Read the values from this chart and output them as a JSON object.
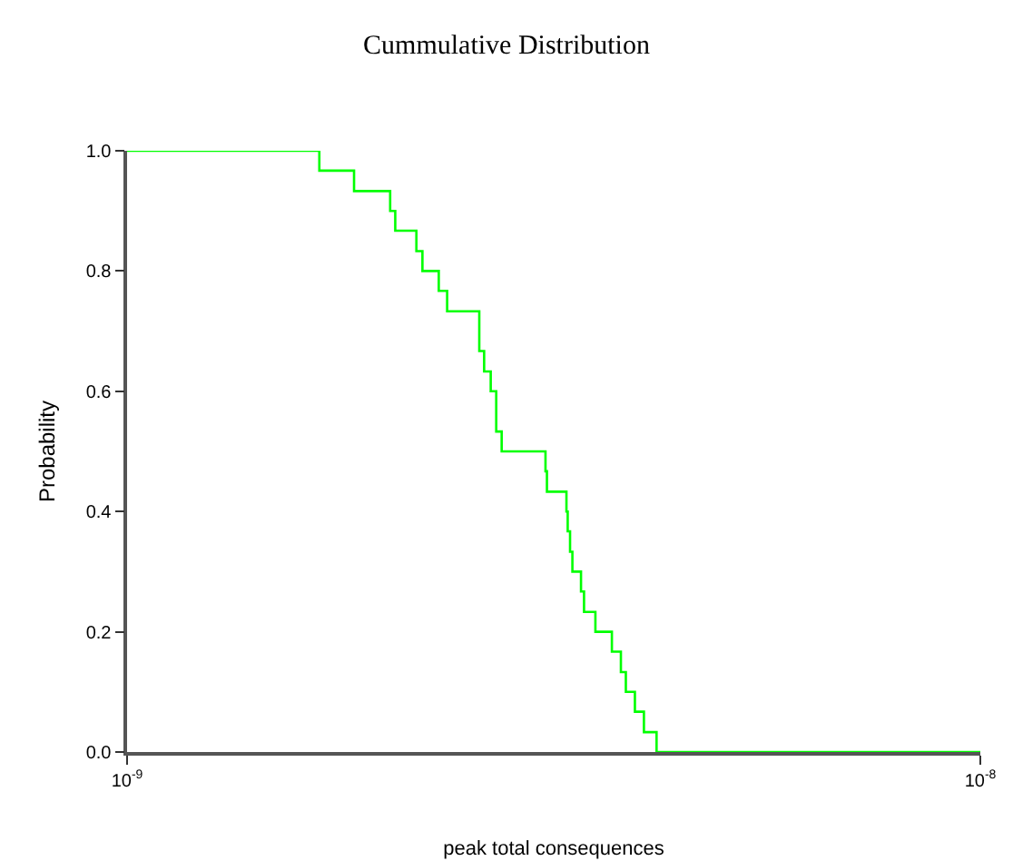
{
  "chart_data": {
    "type": "step",
    "title": "Cummulative Distribution",
    "xlabel": "peak total consequences",
    "ylabel": "Probability",
    "log": "x",
    "grid": false,
    "marker": "none",
    "line_style": "solid",
    "xlim": [
      1e-09,
      1e-08
    ],
    "xticks": [
      {
        "value": 1e-09,
        "label": "10$^{-9}$"
      },
      {
        "value": 1e-08,
        "label": "10$^{-8}$"
      }
    ],
    "ylim": [
      0,
      1
    ],
    "yticks": [
      {
        "value": 0,
        "label": "0.0"
      },
      {
        "value": 0.2,
        "label": "0.2"
      },
      {
        "value": 0.4,
        "label": "0.4"
      },
      {
        "value": 0.6,
        "label": "0.6"
      },
      {
        "value": 0.8,
        "label": "0.8"
      },
      {
        "value": 1,
        "label": "1.0"
      }
    ],
    "series": [
      {
        "color": "#00ff00",
        "x": [
          1e-09,
          1.68e-09,
          1.845e-09,
          2.034e-09,
          2.062e-09,
          2.183e-09,
          2.219e-09,
          2.319e-09,
          2.372e-09,
          2.587e-09,
          2.621e-09,
          2.668e-09,
          2.708e-09,
          2.748e-09,
          3.093e-09,
          3.105e-09,
          3.273e-09,
          3.284e-09,
          3.305e-09,
          3.326e-09,
          3.404e-09,
          3.432e-09,
          3.539e-09,
          3.7e-09,
          3.791e-09,
          3.842e-09,
          3.937e-09,
          4.034e-09,
          4.174e-09,
          1e-08
        ],
        "values": [
          1,
          0.967,
          0.933,
          0.9,
          0.867,
          0.833,
          0.8,
          0.767,
          0.733,
          0.667,
          0.633,
          0.6,
          0.533,
          0.5,
          0.467,
          0.433,
          0.4,
          0.367,
          0.333,
          0.3,
          0.267,
          0.233,
          0.2,
          0.167,
          0.133,
          0.1,
          0.067,
          0.033,
          0,
          0
        ]
      }
    ]
  }
}
